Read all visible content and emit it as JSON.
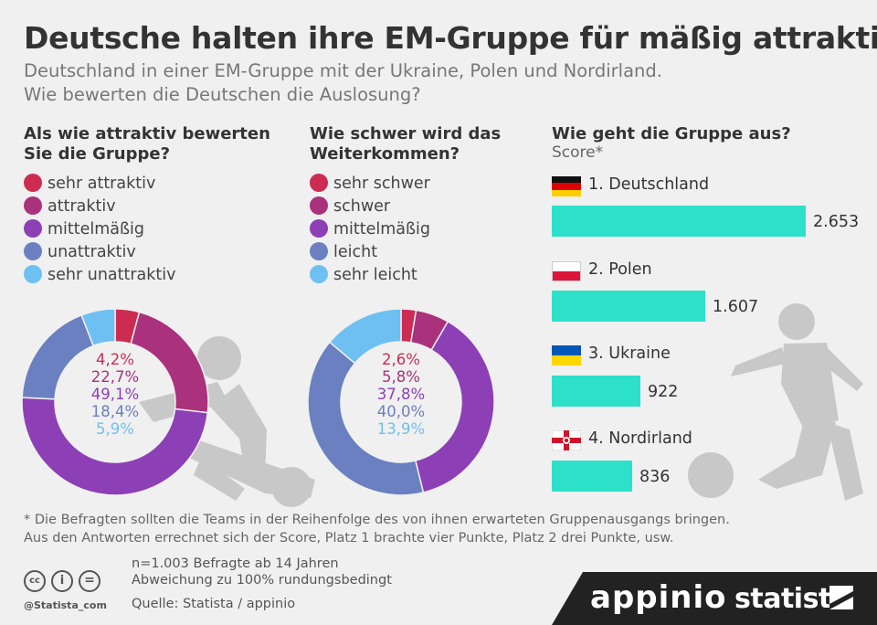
{
  "title": "Deutsche halten ihre EM-Gruppe für mäßig attraktiv",
  "subtitle_line1": "Deutschland in einer EM-Gruppe mit der Ukraine, Polen und Nordirland.",
  "subtitle_line2": "Wie bewerten die Deutschen die Auslosung?",
  "colors": {
    "c1": "#cc2c52",
    "c2": "#aa327c",
    "c3": "#8d3fb5",
    "c4": "#6a80c0",
    "c5": "#6ec0f2",
    "bar": "#2de0c9",
    "figure": "#c8c8c8"
  },
  "chart_data": [
    {
      "type": "pie",
      "title_line1": "Als wie attraktiv bewerten",
      "title_line2": "Sie die Gruppe?",
      "categories": [
        "sehr attraktiv",
        "attraktiv",
        "mittelmäßig",
        "unattraktiv",
        "sehr unattraktiv"
      ],
      "values": [
        4.2,
        22.7,
        49.1,
        18.4,
        5.9
      ],
      "labels": [
        "4,2%",
        "22,7%",
        "49,1%",
        "18,4%",
        "5,9%"
      ]
    },
    {
      "type": "pie",
      "title_line1": "Wie schwer wird das",
      "title_line2": "Weiterkommen?",
      "categories": [
        "sehr schwer",
        "schwer",
        "mittelmäßig",
        "leicht",
        "sehr leicht"
      ],
      "values": [
        2.6,
        5.8,
        37.8,
        40.0,
        13.9
      ],
      "labels": [
        "2,6%",
        "5,8%",
        "37,8%",
        "40,0%",
        "13,9%"
      ]
    },
    {
      "type": "bar",
      "title": "Wie geht die Gruppe aus?",
      "ylabel": "Score*",
      "categories": [
        "1. Deutschland",
        "2. Polen",
        "3. Ukraine",
        "4. Nordirland"
      ],
      "values": [
        2653,
        1607,
        922,
        836
      ],
      "labels": [
        "2.653",
        "1.607",
        "922",
        "836"
      ],
      "xlim": [
        0,
        2653
      ]
    }
  ],
  "footnote_line1": "* Die Befragten sollten die Teams in der Reihenfolge des von ihnen erwarteten Gruppenausgangs bringen.",
  "footnote_line2": "Aus den Antworten errechnet sich der Score, Platz 1 brachte vier Punkte, Platz 2 drei Punkte, usw.",
  "meta_line1": "n=1.003 Befragte ab 14 Jahren",
  "meta_line2": "Abweichung zu 100% rundungsbedingt",
  "source": "Quelle: Statista / appinio",
  "handle": "@Statista_com",
  "license_icons": [
    "cc-icon",
    "person-icon",
    "equal-icon"
  ],
  "license_glyphs": [
    "cc",
    "i",
    "="
  ],
  "brand1": "appinio",
  "brand2": "statista"
}
